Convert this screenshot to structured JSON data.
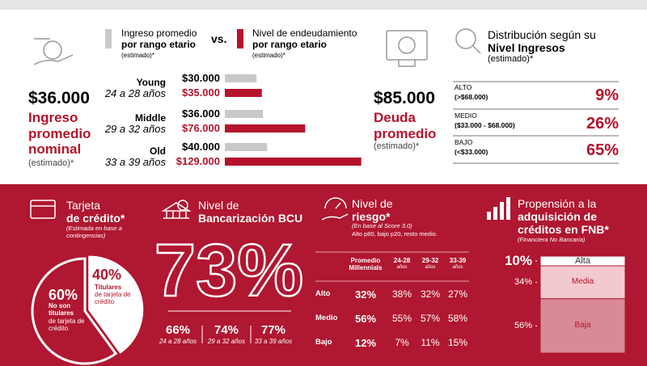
{
  "income_summary": {
    "value": "$36.000",
    "label": "Ingreso promedio nominal",
    "note": "(estimado)*"
  },
  "income_debt": {
    "legend": [
      {
        "title": "Ingreso promedio",
        "subtitle": "por rango etario",
        "note": "(estimado)*",
        "color": "#c9c9c9"
      },
      {
        "title": "Nivel de endeudamiento",
        "subtitle": "por rango etario",
        "note": "(estimado)*",
        "color": "#b5132b"
      }
    ],
    "vs": "vs.",
    "xlim": [
      0,
      130000
    ],
    "groups": [
      {
        "name": "Young",
        "range": "24 a 28 años",
        "values": [
          30000,
          35000
        ],
        "value_labels": [
          "$30.000",
          "$35.000"
        ]
      },
      {
        "name": "Middle",
        "range": "29 a 32 años",
        "values": [
          36000,
          76000
        ],
        "value_labels": [
          "$36.000",
          "$76.000"
        ]
      },
      {
        "name": "Old",
        "range": "33 a 39 años",
        "values": [
          40000,
          129000
        ],
        "value_labels": [
          "$40.000",
          "$129.000"
        ]
      }
    ]
  },
  "debt_summary": {
    "value": "$85.000",
    "label": "Deuda promedio",
    "note": "(estimado)*"
  },
  "distribution": {
    "title": "Distribución según su",
    "title_bold": "Nivel Ingresos",
    "note": "(estimado)*",
    "rows": [
      {
        "level": "ALTO",
        "range": "(>$68.000)",
        "value": "9%"
      },
      {
        "level": "MEDIO",
        "range": "($33.000 - $68.000)",
        "value": "26%"
      },
      {
        "level": "BAJO",
        "range": "(<$33.000)",
        "value": "65%"
      }
    ]
  },
  "card": {
    "title": "Tarjeta",
    "title_bold": "de crédito*",
    "note": "(Estimada en base a contingencias)",
    "slices": [
      {
        "value": 40,
        "label": "40%",
        "text_bold": "Titulares",
        "text": "de tarjeta de crédito"
      },
      {
        "value": 60,
        "label": "60%",
        "text_bold": "No son titulares",
        "text": "de tarjeta de crédito"
      }
    ]
  },
  "bank": {
    "title": "Nivel de",
    "title_bold": "Bancarización BCU",
    "value": "73%",
    "groups": [
      {
        "value": "66%",
        "range": "24 a 28 años"
      },
      {
        "value": "74%",
        "range": "29 a 32 años"
      },
      {
        "value": "77%",
        "range": "33 a 39 años"
      }
    ]
  },
  "risk": {
    "title": "Nivel de",
    "title_bold": "riesgo*",
    "note": "(En base al Score 3.0)",
    "note2": "Alto p80, bajo p20, resto medio.",
    "columns": [
      {
        "label": "Promedio Millennials"
      },
      {
        "label": "24-28",
        "unit": "años"
      },
      {
        "label": "29-32",
        "unit": "años"
      },
      {
        "label": "33-39",
        "unit": "años"
      }
    ],
    "rows": [
      {
        "label": "Alto",
        "cells": [
          "32%",
          "38%",
          "32%",
          "27%"
        ]
      },
      {
        "label": "Medio",
        "cells": [
          "56%",
          "55%",
          "57%",
          "58%"
        ]
      },
      {
        "label": "Bajo",
        "cells": [
          "12%",
          "7%",
          "11%",
          "15%"
        ]
      }
    ]
  },
  "propensity": {
    "title": "Propensión a la",
    "title_bold": "adquisición de créditos en FNB*",
    "note": "(Financiera No Bancaria)",
    "segments": [
      {
        "name": "Alta",
        "value": 10,
        "label": "10%",
        "color": "#ffffff"
      },
      {
        "name": "Media",
        "value": 34,
        "label": "34%",
        "color": "#f2c9cf"
      },
      {
        "name": "Baja",
        "value": 56,
        "label": "56%",
        "color": "#d98a96"
      }
    ]
  }
}
